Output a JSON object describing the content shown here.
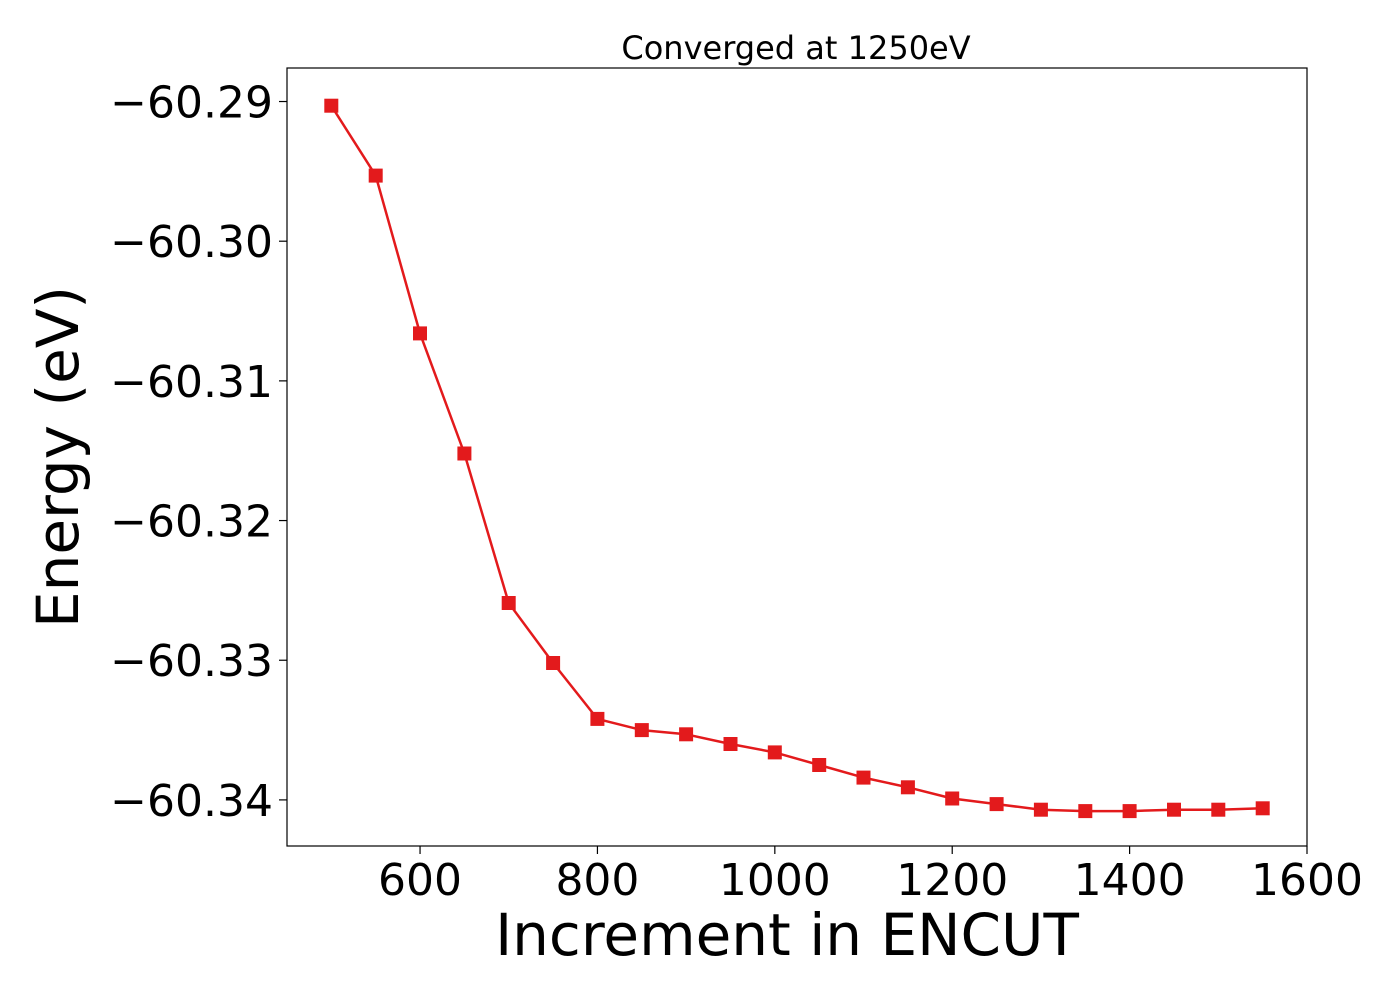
{
  "chart_data": {
    "type": "line",
    "title": "Converged at 1250eV",
    "xlabel": "Increment in ENCUT",
    "ylabel": "Energy (eV)",
    "xlim": [
      450,
      1600
    ],
    "ylim": [
      -60.3433,
      -60.2876
    ],
    "x_ticks": [
      600,
      800,
      1000,
      1200,
      1400,
      1600
    ],
    "y_ticks": [
      -60.29,
      -60.3,
      -60.31,
      -60.32,
      -60.33,
      -60.34
    ],
    "x_tick_labels": [
      "600",
      "800",
      "1000",
      "1200",
      "1400",
      "1600"
    ],
    "y_tick_labels": [
      "−60.29",
      "−60.30",
      "−60.31",
      "−60.32",
      "−60.33",
      "−60.34"
    ],
    "grid": false,
    "colors": {
      "series": "#e31a1c",
      "axes": "#000000",
      "background": "#ffffff"
    },
    "marker": "square",
    "series": [
      {
        "x": [
          500,
          550,
          600,
          650,
          700,
          750,
          800,
          850,
          900,
          950,
          1000,
          1050,
          1100,
          1150,
          1200,
          1250,
          1300,
          1350,
          1400,
          1450,
          1500,
          1550
        ],
        "values": [
          -60.2903,
          -60.2953,
          -60.3066,
          -60.3152,
          -60.3259,
          -60.3302,
          -60.3342,
          -60.335,
          -60.3353,
          -60.336,
          -60.3366,
          -60.3375,
          -60.3384,
          -60.3391,
          -60.3399,
          -60.3403,
          -60.3407,
          -60.3408,
          -60.3408,
          -60.3407,
          -60.3407,
          -60.3406
        ]
      }
    ]
  }
}
